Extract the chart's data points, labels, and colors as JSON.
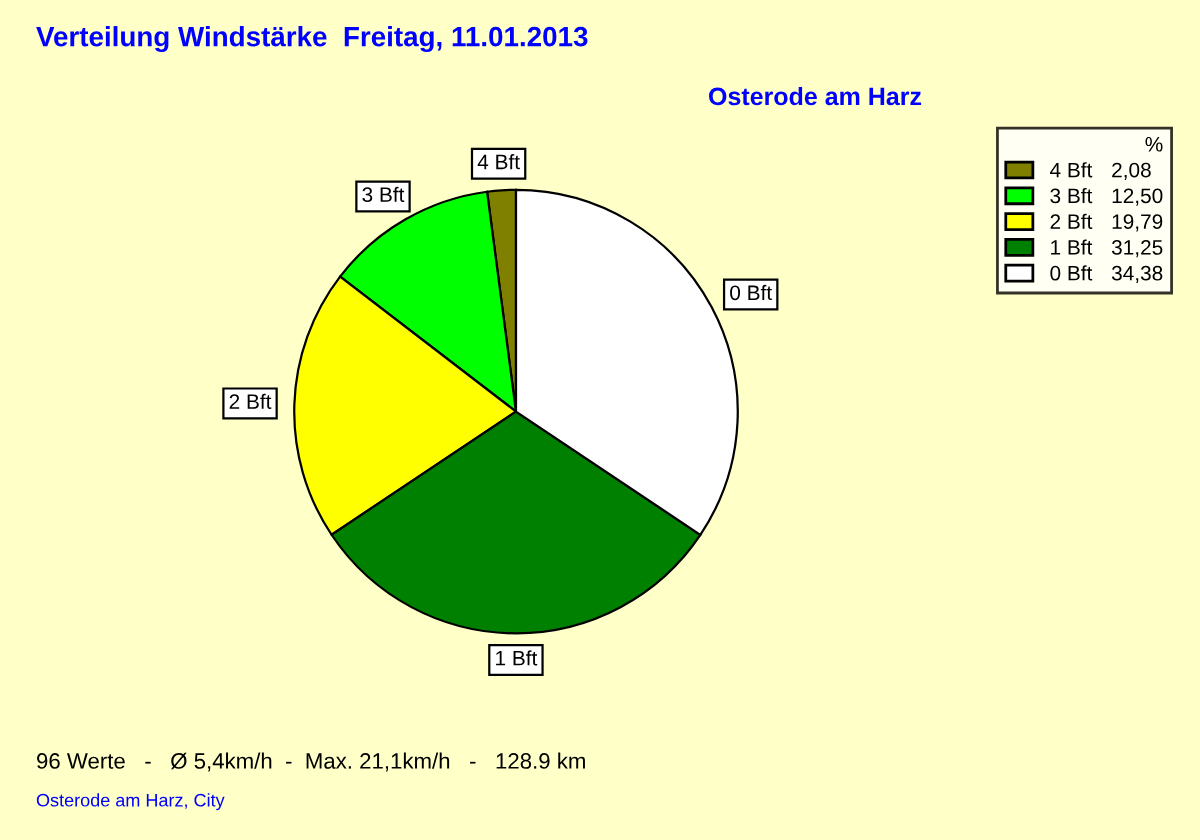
{
  "chart_data": {
    "type": "pie",
    "title": "Verteilung Windstärke  Freitag, 11.01.2013",
    "subtitle": "Osterode am Harz",
    "categories": [
      "4 Bft",
      "3 Bft",
      "2 Bft",
      "1 Bft",
      "0 Bft"
    ],
    "values": [
      2.08,
      12.5,
      19.79,
      31.25,
      34.38
    ],
    "value_labels": [
      "2,08",
      "12,50",
      "19,79",
      "31,25",
      "34,38"
    ],
    "colors": [
      "#808000",
      "#00ff00",
      "#ffff00",
      "#008000",
      "#ffffff"
    ],
    "legend_title": "%",
    "legend": "top right",
    "annotations": [
      "96 Werte   -   Ø 5,4km/h  -  Max. 21,1km/h   -   128.9 km",
      "Osterode am Harz, City"
    ]
  }
}
